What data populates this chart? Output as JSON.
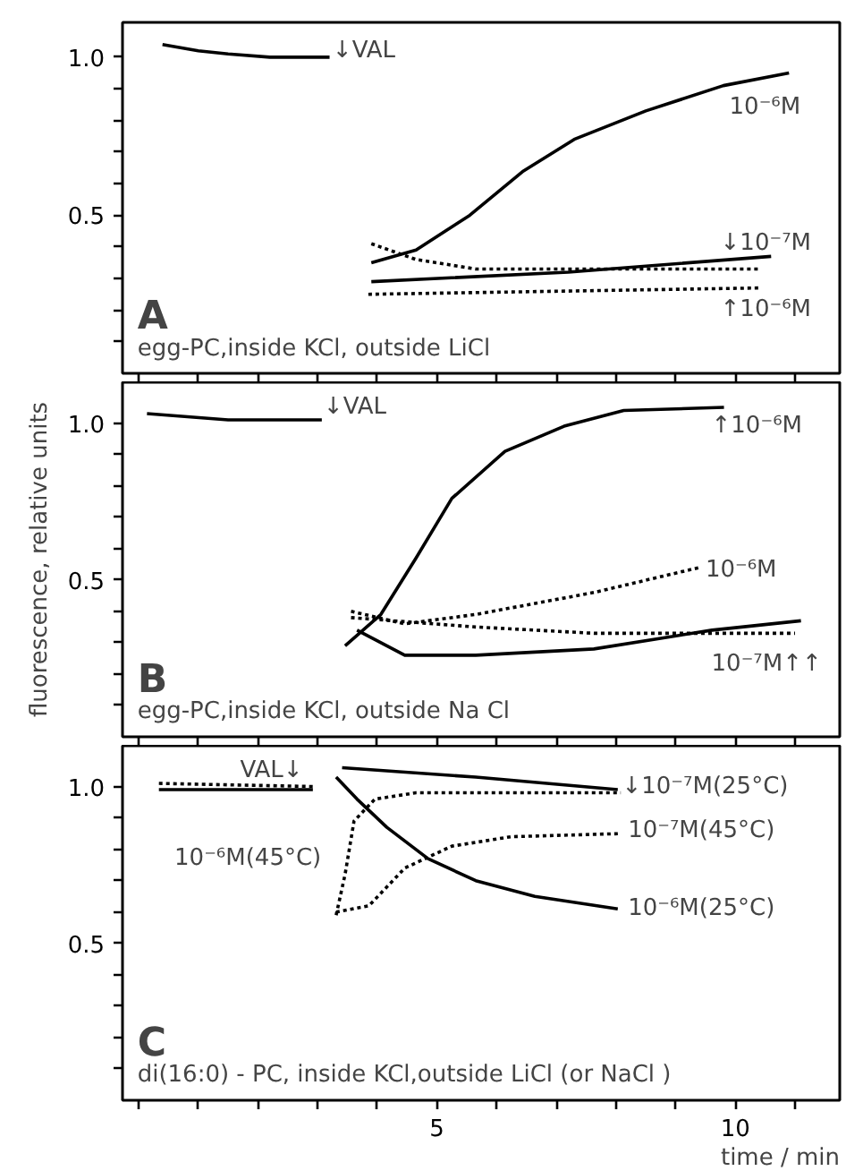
{
  "chart_data": [
    {
      "type": "line",
      "tick_labels": "y",
      "grid": false,
      "xlim": [
        -0.27,
        11.75
      ],
      "ylim": [
        0,
        1.11
      ],
      "xticks": [
        {
          "value": 0,
          "label": null
        },
        {
          "value": 1,
          "label": null
        },
        {
          "value": 2,
          "label": null
        },
        {
          "value": 3,
          "label": null
        },
        {
          "value": 4,
          "label": null
        },
        {
          "value": 5,
          "label": null
        },
        {
          "value": 6,
          "label": null
        },
        {
          "value": 7,
          "label": null
        },
        {
          "value": 8,
          "label": null
        },
        {
          "value": 9,
          "label": null
        },
        {
          "value": 10,
          "label": null
        },
        {
          "value": 11,
          "label": null
        }
      ],
      "yticks": [
        {
          "value": 0.1,
          "label": null
        },
        {
          "value": 0.2,
          "label": null
        },
        {
          "value": 0.3,
          "label": null
        },
        {
          "value": 0.4,
          "label": null
        },
        {
          "value": 0.5,
          "label": "0.5"
        },
        {
          "value": 0.6,
          "label": null
        },
        {
          "value": 0.7,
          "label": null
        },
        {
          "value": 0.8,
          "label": null
        },
        {
          "value": 0.9,
          "label": null
        },
        {
          "value": 1.0,
          "label": "1.0"
        }
      ],
      "series": [
        {
          "color": "#000000",
          "line_style": "solid",
          "x": [
            0.4,
            1.0,
            1.5,
            2.2,
            3.2
          ],
          "values": [
            1.04,
            1.02,
            1.01,
            1.0,
            1.0
          ]
        },
        {
          "color": "#000000",
          "line_style": "solid",
          "x": [
            3.9,
            4.65,
            5.55,
            6.45,
            7.3,
            8.5,
            9.8,
            10.9
          ],
          "values": [
            0.35,
            0.39,
            0.5,
            0.64,
            0.74,
            0.83,
            0.91,
            0.95
          ]
        },
        {
          "color": "#000000",
          "line_style": "solid",
          "x": [
            3.9,
            7.2,
            10.6
          ],
          "values": [
            0.29,
            0.32,
            0.37
          ]
        },
        {
          "color": "#000000",
          "line_style": "dotted",
          "x": [
            3.9,
            4.65,
            5.65,
            10.4
          ],
          "values": [
            0.41,
            0.36,
            0.33,
            0.33
          ]
        },
        {
          "color": "#000000",
          "line_style": "dotted",
          "x": [
            3.85,
            10.4
          ],
          "values": [
            0.25,
            0.27
          ]
        }
      ],
      "annotations": [
        "A",
        "egg-PC,inside KCl, outside LiCl",
        "↓VAL",
        "10⁻⁶M",
        "↓10⁻⁷M",
        "↑10⁻⁶M"
      ]
    },
    {
      "type": "line",
      "tick_labels": "y",
      "grid": false,
      "xlim": [
        -0.27,
        11.75
      ],
      "ylim": [
        0,
        1.13
      ],
      "ylabel": "fluorescence, relative units",
      "xticks": [
        {
          "value": 0,
          "label": null
        },
        {
          "value": 1,
          "label": null
        },
        {
          "value": 2,
          "label": null
        },
        {
          "value": 3,
          "label": null
        },
        {
          "value": 4,
          "label": null
        },
        {
          "value": 5,
          "label": null
        },
        {
          "value": 6,
          "label": null
        },
        {
          "value": 7,
          "label": null
        },
        {
          "value": 8,
          "label": null
        },
        {
          "value": 9,
          "label": null
        },
        {
          "value": 10,
          "label": null
        },
        {
          "value": 11,
          "label": null
        }
      ],
      "yticks": [
        {
          "value": 0.1,
          "label": null
        },
        {
          "value": 0.2,
          "label": null
        },
        {
          "value": 0.3,
          "label": null
        },
        {
          "value": 0.4,
          "label": null
        },
        {
          "value": 0.5,
          "label": "0.5"
        },
        {
          "value": 0.6,
          "label": null
        },
        {
          "value": 0.7,
          "label": null
        },
        {
          "value": 0.8,
          "label": null
        },
        {
          "value": 0.9,
          "label": null
        },
        {
          "value": 1.0,
          "label": "1.0"
        }
      ],
      "series": [
        {
          "color": "#000000",
          "line_style": "solid",
          "x": [
            0.14,
            1.5,
            3.07
          ],
          "values": [
            1.03,
            1.01,
            1.01
          ]
        },
        {
          "color": "#000000",
          "line_style": "solid",
          "x": [
            3.46,
            4.06,
            4.65,
            5.25,
            6.14,
            7.13,
            8.13,
            9.81
          ],
          "values": [
            0.29,
            0.39,
            0.57,
            0.76,
            0.91,
            0.99,
            1.04,
            1.05
          ]
        },
        {
          "color": "#000000",
          "line_style": "solid",
          "x": [
            3.66,
            4.46,
            5.65,
            7.63,
            9.61,
            11.1
          ],
          "values": [
            0.34,
            0.26,
            0.26,
            0.28,
            0.34,
            0.37
          ]
        },
        {
          "color": "#000000",
          "line_style": "dotted",
          "x": [
            3.56,
            4.46,
            5.65,
            7.63,
            9.41
          ],
          "values": [
            0.4,
            0.36,
            0.39,
            0.46,
            0.54
          ]
        },
        {
          "color": "#000000",
          "line_style": "dotted",
          "x": [
            3.56,
            5.65,
            7.63,
            11.0
          ],
          "values": [
            0.38,
            0.35,
            0.33,
            0.33
          ]
        }
      ],
      "annotations": [
        "B",
        "egg-PC,inside KCl, outside Na Cl",
        "↓VAL",
        "↑10⁻⁶M",
        "10⁻⁶M",
        "10⁻⁷M↑↑"
      ]
    },
    {
      "type": "line",
      "grid": false,
      "xlim": [
        -0.27,
        11.75
      ],
      "ylim": [
        0,
        1.13
      ],
      "xlabel": "time / min",
      "xticks": [
        {
          "value": 0,
          "label": null
        },
        {
          "value": 1,
          "label": null
        },
        {
          "value": 2,
          "label": null
        },
        {
          "value": 3,
          "label": null
        },
        {
          "value": 4,
          "label": null
        },
        5,
        {
          "value": 6,
          "label": null
        },
        {
          "value": 7,
          "label": null
        },
        {
          "value": 8,
          "label": null
        },
        {
          "value": 9,
          "label": null
        },
        10,
        {
          "value": 11,
          "label": null
        }
      ],
      "yticks": [
        {
          "value": 0.1,
          "label": null
        },
        {
          "value": 0.2,
          "label": null
        },
        {
          "value": 0.3,
          "label": null
        },
        {
          "value": 0.4,
          "label": null
        },
        {
          "value": 0.5,
          "label": "0.5"
        },
        {
          "value": 0.6,
          "label": null
        },
        {
          "value": 0.7,
          "label": null
        },
        {
          "value": 0.8,
          "label": null
        },
        {
          "value": 0.9,
          "label": null
        },
        {
          "value": 1.0,
          "label": "1.0"
        }
      ],
      "series": [
        {
          "color": "#000000",
          "line_style": "solid",
          "x": [
            0.34,
            2.92
          ],
          "values": [
            0.99,
            0.99
          ]
        },
        {
          "color": "#000000",
          "line_style": "dotted",
          "x": [
            0.34,
            2.92
          ],
          "values": [
            1.01,
            1.0
          ]
        },
        {
          "color": "#000000",
          "line_style": "solid",
          "x": [
            3.41,
            5.65,
            8.03
          ],
          "values": [
            1.06,
            1.03,
            0.99
          ]
        },
        {
          "color": "#000000",
          "line_style": "solid",
          "x": [
            3.31,
            3.66,
            4.16,
            4.85,
            5.65,
            6.64,
            8.03
          ],
          "values": [
            1.03,
            0.96,
            0.87,
            0.77,
            0.7,
            0.65,
            0.61
          ]
        },
        {
          "color": "#000000",
          "line_style": "dotted",
          "x": [
            3.31,
            3.46,
            3.61,
            3.96,
            4.65,
            8.08
          ],
          "values": [
            0.59,
            0.72,
            0.89,
            0.96,
            0.98,
            0.98
          ]
        },
        {
          "color": "#000000",
          "line_style": "dotted",
          "x": [
            3.31,
            3.86,
            4.46,
            5.25,
            6.24,
            8.08
          ],
          "values": [
            0.6,
            0.62,
            0.74,
            0.81,
            0.84,
            0.85
          ]
        }
      ],
      "annotations": [
        "C",
        "di(16:0) - PC, inside KCl,outside LiCl (or NaCl )",
        "VAL↓",
        "↓10⁻⁷M(25°C)",
        "10⁻⁷M(45°C)",
        "10⁻⁶M(25°C)",
        "10⁻⁶M(45°C)"
      ]
    }
  ]
}
